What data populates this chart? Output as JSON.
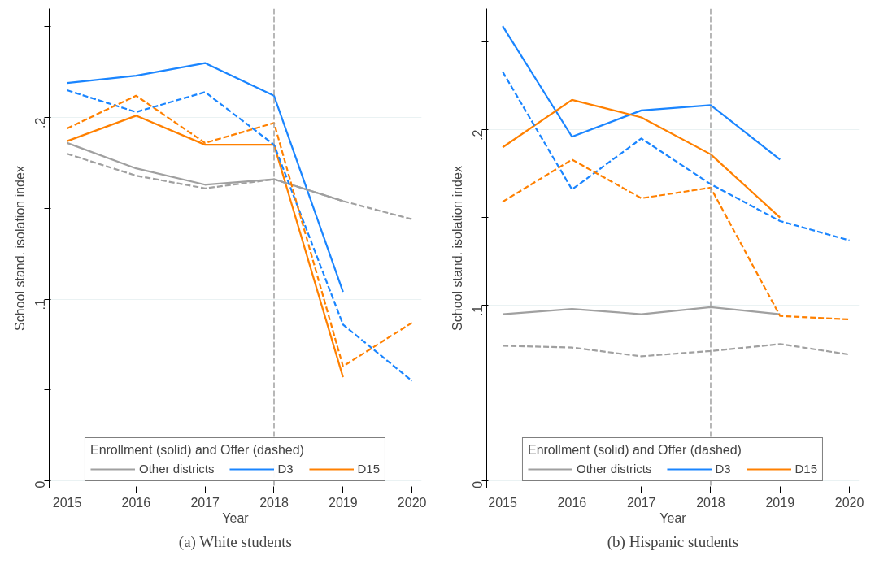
{
  "chart_data": [
    {
      "type": "line",
      "title": "(a) White students",
      "xlabel": "Year",
      "ylabel": "School stand. isolation index",
      "legend_title": "Enrollment (solid) and Offer (dashed)",
      "legend": "bottom",
      "grid": "y",
      "x": [
        2015,
        2016,
        2017,
        2018,
        2019,
        2020
      ],
      "xlim": [
        2014.74,
        2020.14
      ],
      "xticks": [
        2015,
        2016,
        2017,
        2018,
        2019,
        2020
      ],
      "ylim": [
        -0.004,
        0.26
      ],
      "yticks": [
        {
          "value": 0,
          "label": "0"
        },
        {
          "value": 0.05,
          "label": null
        },
        {
          "value": 0.1,
          "label": ".1"
        },
        {
          "value": 0.15,
          "label": null
        },
        {
          "value": 0.2,
          "label": ".2"
        },
        {
          "value": 0.25,
          "label": null
        }
      ],
      "ref_lines": [
        {
          "axis": "x",
          "value": 2018,
          "label": null,
          "color": "#a0a0a0",
          "line_style": "dashed"
        }
      ],
      "series": [
        {
          "name": "Other districts",
          "color": "#a0a0a0",
          "line_style": "solid",
          "values": [
            0.186,
            0.172,
            0.163,
            0.166,
            0.154,
            null
          ]
        },
        {
          "name": "D3",
          "color": "#1a85ff",
          "line_style": "solid",
          "values": [
            0.219,
            0.223,
            0.23,
            0.212,
            0.104,
            null
          ]
        },
        {
          "name": "D15",
          "color": "#ff8000",
          "line_style": "solid",
          "values": [
            0.187,
            0.201,
            0.185,
            0.185,
            0.057,
            null
          ]
        },
        {
          "color": "#a0a0a0",
          "line_style": "dashed",
          "values": [
            0.18,
            0.168,
            0.161,
            0.166,
            0.154,
            0.144
          ]
        },
        {
          "color": "#1a85ff",
          "line_style": "dashed",
          "values": [
            0.215,
            0.203,
            0.214,
            0.185,
            0.086,
            0.055
          ]
        },
        {
          "color": "#ff8000",
          "line_style": "dashed",
          "values": [
            0.194,
            0.212,
            0.186,
            0.197,
            0.063,
            0.087
          ]
        }
      ]
    },
    {
      "type": "line",
      "title": "(b) Hispanic students",
      "xlabel": "Year",
      "ylabel": "School stand. isolation index",
      "legend_title": "Enrollment (solid) and Offer (dashed)",
      "legend": "bottom",
      "grid": "y",
      "x": [
        2015,
        2016,
        2017,
        2018,
        2019,
        2020
      ],
      "xlim": [
        2014.77,
        2020.14
      ],
      "xticks": [
        2015,
        2016,
        2017,
        2018,
        2019,
        2020
      ],
      "ylim": [
        -0.004,
        0.269
      ],
      "yticks": [
        {
          "value": 0,
          "label": "0"
        },
        {
          "value": 0.05,
          "label": null
        },
        {
          "value": 0.1,
          "label": ".1"
        },
        {
          "value": 0.15,
          "label": null
        },
        {
          "value": 0.2,
          "label": ".2"
        },
        {
          "value": 0.25,
          "label": null
        }
      ],
      "ref_lines": [
        {
          "axis": "x",
          "value": 2018,
          "label": null,
          "color": "#a0a0a0",
          "line_style": "dashed"
        }
      ],
      "series": [
        {
          "name": "Other districts",
          "color": "#a0a0a0",
          "line_style": "solid",
          "values": [
            0.095,
            0.098,
            0.095,
            0.099,
            0.095,
            null
          ]
        },
        {
          "name": "D3",
          "color": "#1a85ff",
          "line_style": "solid",
          "values": [
            0.259,
            0.196,
            0.211,
            0.214,
            0.183,
            null
          ]
        },
        {
          "name": "D15",
          "color": "#ff8000",
          "line_style": "solid",
          "values": [
            0.19,
            0.217,
            0.207,
            0.186,
            0.15,
            null
          ]
        },
        {
          "color": "#a0a0a0",
          "line_style": "dashed",
          "values": [
            0.077,
            0.076,
            0.071,
            0.074,
            0.078,
            0.072
          ]
        },
        {
          "color": "#1a85ff",
          "line_style": "dashed",
          "values": [
            0.233,
            0.166,
            0.195,
            0.169,
            0.148,
            0.137
          ]
        },
        {
          "color": "#ff8000",
          "line_style": "dashed",
          "values": [
            0.159,
            0.183,
            0.161,
            0.167,
            0.094,
            0.092
          ]
        }
      ]
    }
  ]
}
